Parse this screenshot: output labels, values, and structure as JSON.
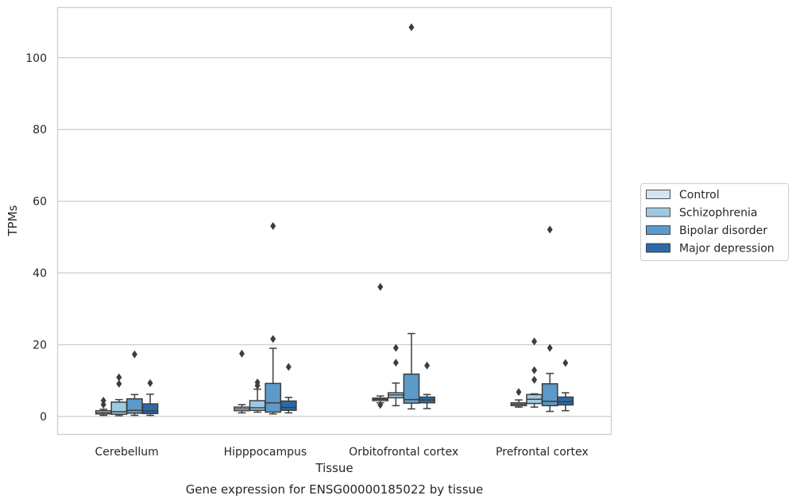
{
  "chart_data": {
    "type": "box",
    "title": "Gene expression for ENSG00000185022 by tissue",
    "xlabel": "Tissue",
    "ylabel": "TPMs",
    "categories": [
      "Cerebellum",
      "Hipppocampus",
      "Orbitofrontal cortex",
      "Prefrontal cortex"
    ],
    "ylim": [
      -5,
      114
    ],
    "yticks": [
      0,
      20,
      40,
      60,
      80,
      100
    ],
    "grid": "horizontal",
    "legend_position": "right",
    "series": [
      {
        "name": "Control",
        "color": "#d4e4f1",
        "boxes": [
          {
            "whislo": 0.3,
            "q1": 0.7,
            "median": 1.1,
            "q3": 1.6,
            "whishi": 2.0,
            "fliers": [
              3.3,
              4.4
            ]
          },
          {
            "whislo": 1.0,
            "q1": 1.6,
            "median": 2.1,
            "q3": 2.6,
            "whishi": 3.3,
            "fliers": [
              17.5
            ]
          },
          {
            "whislo": 3.8,
            "q1": 4.4,
            "median": 4.8,
            "q3": 5.1,
            "whishi": 5.7,
            "fliers": [
              3.2,
              36.1
            ]
          },
          {
            "whislo": 2.6,
            "q1": 3.0,
            "median": 3.4,
            "q3": 3.8,
            "whishi": 4.6,
            "fliers": [
              6.8
            ]
          }
        ]
      },
      {
        "name": "Schizophrenia",
        "color": "#9ec9e1",
        "boxes": [
          {
            "whislo": 0.2,
            "q1": 0.6,
            "median": 1.3,
            "q3": 4.0,
            "whishi": 4.7,
            "fliers": [
              9.1,
              10.9
            ]
          },
          {
            "whislo": 1.2,
            "q1": 1.7,
            "median": 2.4,
            "q3": 4.4,
            "whishi": 7.6,
            "fliers": [
              8.6,
              9.5
            ]
          },
          {
            "whislo": 3.0,
            "q1": 5.2,
            "median": 6.0,
            "q3": 6.6,
            "whishi": 9.3,
            "fliers": [
              15.0,
              19.1
            ]
          },
          {
            "whislo": 2.6,
            "q1": 3.6,
            "median": 4.8,
            "q3": 6.1,
            "whishi": 6.3,
            "fliers": [
              10.2,
              12.9,
              20.9
            ]
          }
        ]
      },
      {
        "name": "Bipolar disorder",
        "color": "#5b9ac9",
        "boxes": [
          {
            "whislo": 0.3,
            "q1": 0.9,
            "median": 1.7,
            "q3": 4.9,
            "whishi": 6.1,
            "fliers": [
              17.3
            ]
          },
          {
            "whislo": 0.7,
            "q1": 1.2,
            "median": 3.8,
            "q3": 9.2,
            "whishi": 19.0,
            "fliers": [
              21.6,
              53.1
            ]
          },
          {
            "whislo": 2.1,
            "q1": 3.7,
            "median": 4.7,
            "q3": 11.8,
            "whishi": 23.1,
            "fliers": [
              108.5
            ]
          },
          {
            "whislo": 1.4,
            "q1": 3.0,
            "median": 4.2,
            "q3": 9.1,
            "whishi": 12.0,
            "fliers": [
              19.1,
              52.1
            ]
          }
        ]
      },
      {
        "name": "Major depression",
        "color": "#2b6aa8",
        "boxes": [
          {
            "whislo": 0.3,
            "q1": 0.8,
            "median": 1.5,
            "q3": 3.5,
            "whishi": 6.2,
            "fliers": [
              9.3
            ]
          },
          {
            "whislo": 1.0,
            "q1": 1.7,
            "median": 2.5,
            "q3": 4.3,
            "whishi": 5.3,
            "fliers": [
              13.8
            ]
          },
          {
            "whislo": 2.2,
            "q1": 3.8,
            "median": 4.6,
            "q3": 5.4,
            "whishi": 6.1,
            "fliers": [
              14.2
            ]
          },
          {
            "whislo": 1.6,
            "q1": 3.2,
            "median": 4.1,
            "q3": 5.4,
            "whishi": 6.6,
            "fliers": [
              14.9
            ]
          }
        ]
      }
    ]
  }
}
